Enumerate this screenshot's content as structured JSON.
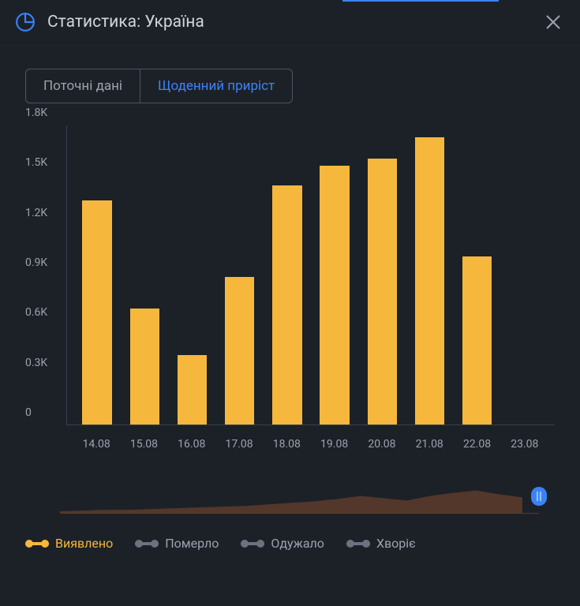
{
  "header": {
    "title": "Статистика: Україна",
    "accent_color": "#3b82f6"
  },
  "tabs": {
    "items": [
      {
        "label": "Поточні дані",
        "active": false
      },
      {
        "label": "Щоденний приріст",
        "active": true
      }
    ],
    "active_color": "#3b82f6",
    "inactive_color": "#9ca3af",
    "border_color": "#4b5563"
  },
  "chart": {
    "type": "bar",
    "categories": [
      "14.08",
      "15.08",
      "16.08",
      "17.08",
      "18.08",
      "19.08",
      "20.08",
      "21.08",
      "22.08",
      "23.08"
    ],
    "values": [
      1350,
      700,
      420,
      890,
      1440,
      1560,
      1600,
      1730,
      1010,
      0
    ],
    "bar_color": "#f5b83d",
    "ylim": [
      0,
      1800
    ],
    "ytick_step": 300,
    "yticks": [
      "0",
      "0.3K",
      "0.6K",
      "0.9K",
      "1.2K",
      "1.5K",
      "1.8K"
    ],
    "axis_font_color": "#9ca3af",
    "axis_line_color": "#374151",
    "axis_fontsize": 14,
    "background_color": "#1c2128",
    "bar_width_ratio": 0.62
  },
  "brush": {
    "fill_color": "#5a3a2a",
    "handle_color": "#3b82f6",
    "handle_bar_color": "#93c5fd"
  },
  "legend": {
    "items": [
      {
        "label": "Виявлено",
        "color": "#f5b83d",
        "label_color": "#f5b83d"
      },
      {
        "label": "Померло",
        "color": "#6b7280",
        "label_color": "#9ca3af"
      },
      {
        "label": "Одужало",
        "color": "#6b7280",
        "label_color": "#9ca3af"
      },
      {
        "label": "Хворіє",
        "color": "#6b7280",
        "label_color": "#9ca3af"
      }
    ],
    "fontsize": 16
  },
  "colors": {
    "panel_bg": "#1c2128",
    "text_primary": "#d1d5db",
    "text_muted": "#9ca3af"
  }
}
